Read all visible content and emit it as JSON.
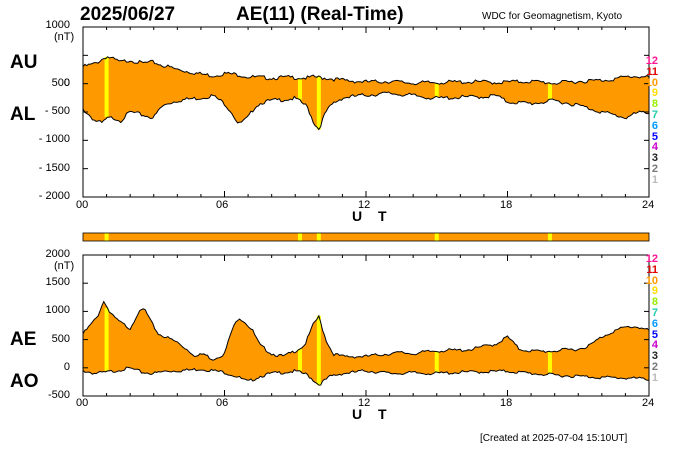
{
  "header": {
    "date": "2025/06/27",
    "title": "AE(11) (Real-Time)",
    "source": "WDC for Geomagnetism, Kyoto"
  },
  "footer": {
    "created": "[Created at 2025-07-04 15:10UT]"
  },
  "colors": {
    "fill": "#ff9900",
    "highlight": "#ffff00",
    "line": "#000000"
  },
  "chart_data": [
    {
      "type": "area",
      "labels": {
        "upper": "AU",
        "lower": "AL"
      },
      "ylabel": "(nT)",
      "xlabel": "U T",
      "ylim": [
        -2000,
        1000
      ],
      "yticks": [
        "1000",
        "500",
        "0",
        "- 500",
        "- 1000",
        "- 1500",
        "- 2000"
      ],
      "xticks": [
        "00",
        "06",
        "12",
        "18",
        "24"
      ],
      "xlim": [
        0,
        24
      ],
      "station_counts": [
        "12",
        "11",
        "10",
        "9",
        "8",
        "7",
        "6",
        "5",
        "4",
        "3",
        "2",
        "1"
      ],
      "station_count_colors": [
        "#ff1493",
        "#e00000",
        "#ff9900",
        "#ffdd00",
        "#99ee00",
        "#22ccaa",
        "#0099ff",
        "#0000ff",
        "#cc00cc",
        "#222222",
        "#777777",
        "#bbbbbb"
      ],
      "reduced_station_hours": [
        1.0,
        9.2,
        10.0,
        15.0,
        19.8
      ],
      "series": [
        {
          "name": "AU",
          "x": [
            0,
            0.5,
            1,
            1.3,
            1.6,
            2,
            2.5,
            3,
            3.3,
            3.6,
            4,
            5,
            5.5,
            6,
            6.3,
            6.6,
            7,
            7.5,
            8,
            8.5,
            9,
            9.5,
            9.8,
            10,
            10.5,
            11,
            12,
            13,
            14,
            15,
            16,
            17,
            17.5,
            18,
            19,
            20,
            21,
            22,
            22.5,
            23,
            23.5,
            24
          ],
          "y": [
            300,
            350,
            480,
            430,
            380,
            420,
            360,
            380,
            330,
            300,
            250,
            170,
            140,
            180,
            170,
            160,
            120,
            110,
            100,
            110,
            110,
            100,
            120,
            110,
            90,
            60,
            30,
            40,
            10,
            20,
            30,
            30,
            20,
            30,
            40,
            10,
            40,
            60,
            80,
            120,
            130,
            110
          ]
        },
        {
          "name": "AL",
          "x": [
            0,
            0.5,
            0.8,
            1,
            1.3,
            1.6,
            2,
            2.5,
            3,
            3.3,
            3.6,
            4,
            4.5,
            5,
            5.5,
            6,
            6.3,
            6.6,
            7,
            7.3,
            7.6,
            8,
            8.5,
            9,
            9.5,
            9.8,
            10,
            10.3,
            10.6,
            11,
            12,
            13,
            14,
            15,
            16,
            17,
            17.5,
            18,
            19,
            20,
            21,
            22,
            22.5,
            23,
            23.5,
            24
          ],
          "y": [
            -450,
            -650,
            -700,
            -620,
            -600,
            -650,
            -500,
            -550,
            -600,
            -420,
            -350,
            -300,
            -270,
            -250,
            -210,
            -350,
            -500,
            -720,
            -600,
            -400,
            -330,
            -300,
            -280,
            -260,
            -400,
            -700,
            -800,
            -500,
            -350,
            -250,
            -200,
            -170,
            -210,
            -260,
            -240,
            -230,
            -210,
            -320,
            -350,
            -300,
            -380,
            -500,
            -550,
            -600,
            -520,
            -500
          ]
        }
      ]
    },
    {
      "type": "area",
      "labels": {
        "upper": "AE",
        "lower": "AO"
      },
      "ylabel": "(nT)",
      "xlabel": "U T",
      "ylim": [
        -500,
        2000
      ],
      "yticks": [
        "2000",
        "1500",
        "1000",
        "500",
        "0",
        "-500"
      ],
      "xticks": [
        "00",
        "06",
        "12",
        "18",
        "24"
      ],
      "xlim": [
        0,
        24
      ],
      "station_counts": [
        "12",
        "11",
        "10",
        "9",
        "8",
        "7",
        "6",
        "5",
        "4",
        "3",
        "2",
        "1"
      ],
      "station_count_colors": [
        "#ff1493",
        "#e00000",
        "#ff9900",
        "#ffdd00",
        "#99ee00",
        "#22ccaa",
        "#0099ff",
        "#0000ff",
        "#cc00cc",
        "#222222",
        "#777777",
        "#bbbbbb"
      ],
      "reduced_station_hours": [
        1.0,
        9.2,
        10.0,
        15.0,
        19.8
      ],
      "series": [
        {
          "name": "AE",
          "x": [
            0,
            0.3,
            0.6,
            0.9,
            1.1,
            1.3,
            1.6,
            2,
            2.3,
            2.6,
            2.9,
            3.2,
            3.5,
            4,
            4.5,
            4.8,
            5.1,
            5.5,
            6,
            6.3,
            6.6,
            6.9,
            7.2,
            7.5,
            8,
            8.5,
            9,
            9.4,
            9.8,
            10,
            10.3,
            10.6,
            11,
            11.5,
            12,
            12.5,
            13,
            13.5,
            14,
            14.5,
            15,
            15.5,
            16,
            16.5,
            17,
            17.5,
            18,
            18.5,
            19,
            19.5,
            20,
            20.5,
            21,
            21.5,
            22,
            22.5,
            23,
            23.5,
            24
          ],
          "y": [
            600,
            750,
            900,
            1200,
            1000,
            900,
            800,
            700,
            950,
            1050,
            800,
            600,
            550,
            450,
            300,
            200,
            250,
            150,
            250,
            650,
            900,
            800,
            650,
            400,
            250,
            200,
            300,
            400,
            800,
            900,
            500,
            250,
            200,
            200,
            200,
            230,
            250,
            270,
            250,
            280,
            300,
            310,
            310,
            330,
            380,
            420,
            550,
            330,
            300,
            290,
            300,
            320,
            330,
            400,
            550,
            650,
            720,
            730,
            660
          ]
        },
        {
          "name": "AO",
          "x": [
            0,
            0.5,
            1,
            1.3,
            1.6,
            2,
            2.5,
            3,
            3.5,
            4,
            4.5,
            5,
            5.5,
            6,
            6.5,
            7,
            7.5,
            8,
            8.5,
            9,
            9.5,
            10,
            10.5,
            11,
            11.5,
            12,
            13,
            14,
            15,
            16,
            17,
            18,
            19,
            20,
            21,
            22,
            23,
            24
          ],
          "y": [
            -50,
            -100,
            -80,
            -60,
            -30,
            -10,
            -80,
            -100,
            -60,
            -50,
            -40,
            -20,
            -50,
            -80,
            -150,
            -250,
            -150,
            -100,
            -80,
            -60,
            -120,
            -300,
            -150,
            -100,
            -80,
            -50,
            -100,
            -90,
            -100,
            -80,
            -70,
            -60,
            -100,
            -130,
            -150,
            -170,
            -180,
            -200
          ]
        }
      ]
    }
  ]
}
